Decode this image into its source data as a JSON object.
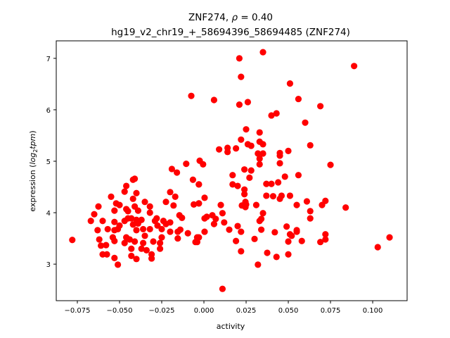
{
  "chart_data": {
    "type": "scatter",
    "title": {
      "line1_prefix": "ZNF274, ",
      "line1_rho": "ρ",
      "line1_suffix": " = 0.40",
      "line2": "hg19_v2_chr19_+_58694396_58694485 (ZNF274)"
    },
    "xlabel": "activity",
    "ylabel": {
      "prefix": "expression (",
      "log": "log",
      "sub": "2",
      "tpm": "tpm",
      "suffix": ")"
    },
    "xlim": [
      -0.0875,
      0.1204
    ],
    "ylim": [
      2.29,
      7.34
    ],
    "xticks": [
      {
        "value": -0.075,
        "label": "−0.075"
      },
      {
        "value": -0.05,
        "label": "−0.050"
      },
      {
        "value": -0.025,
        "label": "−0.025"
      },
      {
        "value": 0.0,
        "label": "0.000"
      },
      {
        "value": 0.025,
        "label": "0.025"
      },
      {
        "value": 0.05,
        "label": "0.050"
      },
      {
        "value": 0.075,
        "label": "0.075"
      },
      {
        "value": 0.1,
        "label": "0.100"
      }
    ],
    "yticks": [
      {
        "value": 3,
        "label": "3"
      },
      {
        "value": 4,
        "label": "4"
      },
      {
        "value": 5,
        "label": "5"
      },
      {
        "value": 6,
        "label": "6"
      },
      {
        "value": 7,
        "label": "7"
      }
    ],
    "grid": false,
    "marker_color": "#ff0000",
    "points": [
      [
        0.035,
        7.12
      ],
      [
        0.021,
        7.0
      ],
      [
        0.022,
        6.64
      ],
      [
        0.051,
        6.51
      ],
      [
        0.089,
        6.85
      ],
      [
        0.006,
        6.19
      ],
      [
        0.021,
        6.1
      ],
      [
        0.026,
        6.15
      ],
      [
        0.056,
        6.21
      ],
      [
        0.069,
        6.07
      ],
      [
        0.04,
        5.89
      ],
      [
        0.043,
        5.93
      ],
      [
        0.06,
        5.75
      ],
      [
        0.025,
        5.62
      ],
      [
        0.033,
        5.56
      ],
      [
        0.022,
        5.42
      ],
      [
        0.026,
        5.33
      ],
      [
        0.028,
        5.3
      ],
      [
        0.033,
        5.38
      ],
      [
        0.035,
        5.33
      ],
      [
        0.063,
        5.31
      ],
      [
        0.009,
        5.23
      ],
      [
        0.014,
        5.26
      ],
      [
        0.014,
        5.18
      ],
      [
        0.019,
        5.25
      ],
      [
        0.032,
        5.15
      ],
      [
        0.035,
        5.15
      ],
      [
        0.033,
        5.05
      ],
      [
        0.033,
        4.94
      ],
      [
        0.045,
        5.16
      ],
      [
        0.045,
        5.11
      ],
      [
        0.05,
        5.2
      ],
      [
        0.045,
        4.96
      ],
      [
        0.075,
        4.93
      ],
      [
        -0.0025,
        5.01
      ],
      [
        -0.0005,
        4.94
      ],
      [
        0.024,
        4.84
      ],
      [
        0.028,
        4.82
      ],
      [
        0.017,
        4.73
      ],
      [
        0.027,
        4.68
      ],
      [
        0.048,
        4.7
      ],
      [
        0.056,
        4.73
      ],
      [
        -0.0075,
        6.27
      ],
      [
        -0.0105,
        4.95
      ],
      [
        0.017,
        4.55
      ],
      [
        0.02,
        4.52
      ],
      [
        0.037,
        4.56
      ],
      [
        0.04,
        4.56
      ],
      [
        0.044,
        4.59
      ],
      [
        0.024,
        4.45
      ],
      [
        0.024,
        4.36
      ],
      [
        0.037,
        4.33
      ],
      [
        0.041,
        4.32
      ],
      [
        0.045,
        4.27
      ],
      [
        0.046,
        4.33
      ],
      [
        0.051,
        4.33
      ],
      [
        -0.003,
        4.55
      ],
      [
        0.0004,
        4.29
      ],
      [
        -0.003,
        4.18
      ],
      [
        0.01,
        4.15
      ],
      [
        0.0225,
        4.14
      ],
      [
        0.0246,
        4.21
      ],
      [
        0.025,
        4.16
      ],
      [
        0.0246,
        4.11
      ],
      [
        0.031,
        4.15
      ],
      [
        0.055,
        4.15
      ],
      [
        0.061,
        4.22
      ],
      [
        0.07,
        4.15
      ],
      [
        0.072,
        4.23
      ],
      [
        0.084,
        4.1
      ],
      [
        0.063,
        4.03
      ],
      [
        0.063,
        3.89
      ],
      [
        0.011,
        3.99
      ],
      [
        0.035,
        3.99
      ],
      [
        0.0004,
        3.89
      ],
      [
        0.0017,
        3.92
      ],
      [
        0.005,
        3.95
      ],
      [
        0.007,
        3.88
      ],
      [
        0.006,
        3.78
      ],
      [
        0.012,
        3.81
      ],
      [
        0.034,
        3.88
      ],
      [
        0.033,
        3.84
      ],
      [
        0.02,
        3.74
      ],
      [
        0.022,
        3.63
      ],
      [
        0.015,
        3.67
      ],
      [
        0.0004,
        3.63
      ],
      [
        0.034,
        3.67
      ],
      [
        0.042,
        3.62
      ],
      [
        0.049,
        3.73
      ],
      [
        0.055,
        3.66
      ],
      [
        0.055,
        3.63
      ],
      [
        0.051,
        3.58
      ],
      [
        0.052,
        3.55
      ],
      [
        0.05,
        3.44
      ],
      [
        0.058,
        3.45
      ],
      [
        0.072,
        3.58
      ],
      [
        0.072,
        3.48
      ],
      [
        0.069,
        3.43
      ],
      [
        0.11,
        3.52
      ],
      [
        0.103,
        3.33
      ],
      [
        0.019,
        3.45
      ],
      [
        0.03,
        3.49
      ],
      [
        0.022,
        3.25
      ],
      [
        0.0375,
        3.22
      ],
      [
        0.043,
        3.14
      ],
      [
        0.05,
        3.19
      ],
      [
        0.032,
        2.99
      ],
      [
        0.011,
        2.52
      ],
      [
        -0.003,
        3.52
      ],
      [
        -0.004,
        3.43
      ],
      [
        -0.078,
        3.47
      ],
      [
        -0.067,
        3.84
      ],
      [
        -0.065,
        3.97
      ],
      [
        -0.0625,
        4.12
      ],
      [
        -0.063,
        3.66
      ],
      [
        -0.062,
        3.48
      ],
      [
        -0.061,
        3.36
      ],
      [
        -0.058,
        3.37
      ],
      [
        -0.06,
        3.19
      ],
      [
        -0.0575,
        3.19
      ],
      [
        -0.06,
        3.84
      ],
      [
        -0.057,
        3.68
      ],
      [
        -0.055,
        4.31
      ],
      [
        -0.053,
        3.12
      ],
      [
        -0.051,
        2.99
      ],
      [
        -0.054,
        3.52
      ],
      [
        -0.053,
        3.45
      ],
      [
        -0.053,
        3.66
      ],
      [
        -0.053,
        3.82
      ],
      [
        -0.053,
        4.04
      ],
      [
        -0.052,
        4.18
      ],
      [
        -0.05,
        4.15
      ],
      [
        -0.051,
        3.68
      ],
      [
        -0.05,
        3.75
      ],
      [
        -0.047,
        3.84
      ],
      [
        -0.046,
        4.07
      ],
      [
        -0.047,
        4.41
      ],
      [
        -0.046,
        4.52
      ],
      [
        -0.042,
        4.64
      ],
      [
        -0.041,
        4.66
      ],
      [
        -0.04,
        4.38
      ],
      [
        -0.042,
        4.27
      ],
      [
        -0.045,
        4.03
      ],
      [
        -0.041,
        4.12
      ],
      [
        -0.039,
        4.04
      ],
      [
        -0.045,
        3.89
      ],
      [
        -0.043,
        3.89
      ],
      [
        -0.04,
        3.86
      ],
      [
        -0.042,
        3.77
      ],
      [
        -0.039,
        3.79
      ],
      [
        -0.037,
        3.86
      ],
      [
        -0.04,
        3.66
      ],
      [
        -0.036,
        3.68
      ],
      [
        -0.046,
        3.52
      ],
      [
        -0.047,
        3.41
      ],
      [
        -0.044,
        3.48
      ],
      [
        -0.041,
        3.44
      ],
      [
        -0.043,
        3.3
      ],
      [
        -0.043,
        3.16
      ],
      [
        -0.04,
        3.1
      ],
      [
        -0.035,
        4.21
      ],
      [
        -0.032,
        4.12
      ],
      [
        -0.032,
        4.0
      ],
      [
        -0.035,
        3.55
      ],
      [
        -0.036,
        3.41
      ],
      [
        -0.037,
        3.3
      ],
      [
        -0.034,
        3.27
      ],
      [
        -0.031,
        3.19
      ],
      [
        -0.031,
        3.11
      ],
      [
        -0.032,
        3.68
      ],
      [
        -0.03,
        3.44
      ],
      [
        -0.029,
        3.84
      ],
      [
        -0.028,
        3.89
      ],
      [
        -0.0275,
        3.75
      ],
      [
        -0.025,
        3.68
      ],
      [
        -0.024,
        3.84
      ],
      [
        -0.0225,
        3.78
      ],
      [
        -0.02,
        3.81
      ],
      [
        -0.025,
        3.52
      ],
      [
        -0.026,
        3.41
      ],
      [
        -0.026,
        3.3
      ],
      [
        -0.0225,
        4.21
      ],
      [
        -0.018,
        4.14
      ],
      [
        -0.02,
        4.4
      ],
      [
        -0.017,
        4.31
      ],
      [
        -0.0145,
        3.95
      ],
      [
        -0.013,
        3.9
      ],
      [
        -0.02,
        3.63
      ],
      [
        -0.0155,
        3.63
      ],
      [
        -0.014,
        3.67
      ],
      [
        -0.0095,
        3.6
      ],
      [
        -0.0155,
        3.5
      ],
      [
        -0.019,
        4.85
      ],
      [
        -0.016,
        4.78
      ],
      [
        -0.0065,
        4.64
      ],
      [
        -0.003,
        4.55
      ],
      [
        -0.006,
        4.16
      ],
      [
        -0.003,
        4.18
      ],
      [
        -0.004,
        3.52
      ],
      [
        -0.005,
        3.43
      ]
    ]
  }
}
